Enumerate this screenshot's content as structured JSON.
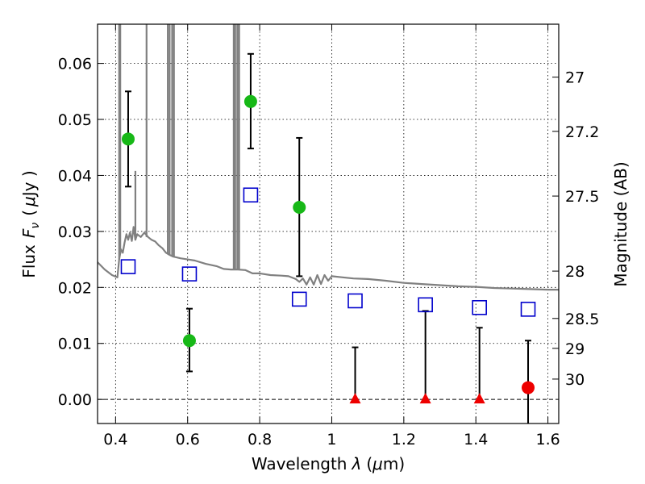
{
  "chart_data": {
    "type": "scatter",
    "title": "",
    "xlabel_prefix": "Wavelength",
    "xlabel_symbol": "λ",
    "xlabel_unit_open": "(",
    "xlabel_unit_mu": "μ",
    "xlabel_unit_rest": "m)",
    "ylabel_prefix": "Flux",
    "ylabel_symbol": "F",
    "ylabel_subscript": "ν",
    "ylabel_unit_open": "(",
    "ylabel_unit_mu": "μ",
    "ylabel_unit_rest": "Jy )",
    "y2label": "Magnitude (AB)",
    "xlim": [
      0.35,
      1.63
    ],
    "ylim": [
      -0.0043,
      0.067
    ],
    "grid": true,
    "x_ticks": [
      {
        "value": 0.4,
        "label": "0.4"
      },
      {
        "value": 0.6,
        "label": "0.6"
      },
      {
        "value": 0.8,
        "label": "0.8"
      },
      {
        "value": 1.0,
        "label": "1"
      },
      {
        "value": 1.2,
        "label": "1.2"
      },
      {
        "value": 1.4,
        "label": "1.4"
      },
      {
        "value": 1.6,
        "label": "1.6"
      }
    ],
    "y_ticks": [
      {
        "value": 0.0,
        "label": "0.00"
      },
      {
        "value": 0.01,
        "label": "0.01"
      },
      {
        "value": 0.02,
        "label": "0.02"
      },
      {
        "value": 0.03,
        "label": "0.03"
      },
      {
        "value": 0.04,
        "label": "0.04"
      },
      {
        "value": 0.05,
        "label": "0.05"
      },
      {
        "value": 0.06,
        "label": "0.06"
      }
    ],
    "y2_ticks": [
      {
        "mag": 27.0,
        "label": "27"
      },
      {
        "mag": 27.2,
        "label": "27.2"
      },
      {
        "mag": 27.5,
        "label": "27.5"
      },
      {
        "mag": 28.0,
        "label": "28"
      },
      {
        "mag": 28.5,
        "label": "28.5"
      },
      {
        "mag": 29.0,
        "label": "29"
      },
      {
        "mag": 30.0,
        "label": "30"
      }
    ],
    "series": [
      {
        "marker": "circle",
        "color": "#17b817",
        "points": [
          {
            "x": 0.435,
            "y": 0.0465,
            "ylo": 0.038,
            "yhi": 0.055
          },
          {
            "x": 0.605,
            "y": 0.0105,
            "ylo": 0.005,
            "yhi": 0.0162
          },
          {
            "x": 0.775,
            "y": 0.0532,
            "ylo": 0.0448,
            "yhi": 0.0617
          },
          {
            "x": 0.91,
            "y": 0.0343,
            "ylo": 0.022,
            "yhi": 0.0467
          }
        ]
      },
      {
        "marker": "triangle",
        "color": "#ee0000",
        "points": [
          {
            "x": 1.065,
            "y": 0.0,
            "ylo": 0.0,
            "yhi": 0.0093
          },
          {
            "x": 1.26,
            "y": 0.0,
            "ylo": 0.0,
            "yhi": 0.0158
          },
          {
            "x": 1.41,
            "y": 0.0,
            "ylo": 0.0,
            "yhi": 0.0128
          }
        ]
      },
      {
        "marker": "circle",
        "color": "#ee0000",
        "points": [
          {
            "x": 1.545,
            "y": 0.0021,
            "ylo": -0.0043,
            "yhi": 0.0105
          }
        ]
      },
      {
        "marker": "square-open",
        "color": "#0000cc",
        "points": [
          {
            "x": 0.435,
            "y": 0.0237
          },
          {
            "x": 0.605,
            "y": 0.0224
          },
          {
            "x": 0.775,
            "y": 0.0365
          },
          {
            "x": 0.91,
            "y": 0.0179
          },
          {
            "x": 1.065,
            "y": 0.0176
          },
          {
            "x": 1.26,
            "y": 0.0169
          },
          {
            "x": 1.41,
            "y": 0.0164
          },
          {
            "x": 1.545,
            "y": 0.0161
          }
        ]
      },
      {
        "type": "line",
        "color": "#808080",
        "points": [
          [
            0.35,
            0.0245
          ],
          [
            0.37,
            0.0232
          ],
          [
            0.39,
            0.0222
          ],
          [
            0.405,
            0.0218
          ],
          [
            0.41,
            0.025
          ],
          [
            0.415,
            0.0268
          ],
          [
            0.42,
            0.0262
          ],
          [
            0.425,
            0.028
          ],
          [
            0.43,
            0.0295
          ],
          [
            0.435,
            0.0285
          ],
          [
            0.44,
            0.0298
          ],
          [
            0.445,
            0.0283
          ],
          [
            0.45,
            0.0308
          ],
          [
            0.455,
            0.0285
          ],
          [
            0.46,
            0.0295
          ],
          [
            0.47,
            0.029
          ],
          [
            0.48,
            0.0298
          ],
          [
            0.49,
            0.029
          ],
          [
            0.5,
            0.0285
          ],
          [
            0.51,
            0.0282
          ],
          [
            0.52,
            0.0275
          ],
          [
            0.53,
            0.027
          ],
          [
            0.54,
            0.0262
          ],
          [
            0.55,
            0.0258
          ],
          [
            0.56,
            0.0255
          ],
          [
            0.58,
            0.0252
          ],
          [
            0.6,
            0.025
          ],
          [
            0.62,
            0.0248
          ],
          [
            0.65,
            0.0242
          ],
          [
            0.68,
            0.0238
          ],
          [
            0.7,
            0.0233
          ],
          [
            0.72,
            0.0232
          ],
          [
            0.74,
            0.0232
          ],
          [
            0.76,
            0.0231
          ],
          [
            0.78,
            0.0225
          ],
          [
            0.8,
            0.0225
          ],
          [
            0.83,
            0.0222
          ],
          [
            0.86,
            0.0221
          ],
          [
            0.88,
            0.022
          ],
          [
            0.9,
            0.0215
          ],
          [
            0.91,
            0.021
          ],
          [
            0.92,
            0.0216
          ],
          [
            0.93,
            0.0205
          ],
          [
            0.94,
            0.0218
          ],
          [
            0.95,
            0.0205
          ],
          [
            0.96,
            0.0222
          ],
          [
            0.97,
            0.0206
          ],
          [
            0.98,
            0.0222
          ],
          [
            0.99,
            0.0212
          ],
          [
            1.0,
            0.022
          ],
          [
            1.03,
            0.0218
          ],
          [
            1.06,
            0.0216
          ],
          [
            1.1,
            0.0215
          ],
          [
            1.15,
            0.0212
          ],
          [
            1.2,
            0.0208
          ],
          [
            1.25,
            0.0206
          ],
          [
            1.3,
            0.0204
          ],
          [
            1.35,
            0.0202
          ],
          [
            1.4,
            0.0201
          ],
          [
            1.45,
            0.0199
          ],
          [
            1.5,
            0.0198
          ],
          [
            1.55,
            0.0197
          ],
          [
            1.6,
            0.0196
          ],
          [
            1.63,
            0.0196
          ]
        ]
      }
    ],
    "spikes": [
      {
        "x": 0.41,
        "base": 0.025
      },
      {
        "x": 0.413,
        "base": 0.026
      },
      {
        "x": 0.486,
        "base": 0.029
      },
      {
        "x": 0.545,
        "base": 0.026
      },
      {
        "x": 0.55,
        "base": 0.0258
      },
      {
        "x": 0.557,
        "base": 0.0256
      },
      {
        "x": 0.562,
        "base": 0.0255
      },
      {
        "x": 0.728,
        "base": 0.0232
      },
      {
        "x": 0.732,
        "base": 0.0232
      },
      {
        "x": 0.738,
        "base": 0.0232
      },
      {
        "x": 0.743,
        "base": 0.0232
      }
    ],
    "feature_line": {
      "x": 0.455,
      "y_from": 0.0285,
      "y_to": 0.0408
    }
  }
}
